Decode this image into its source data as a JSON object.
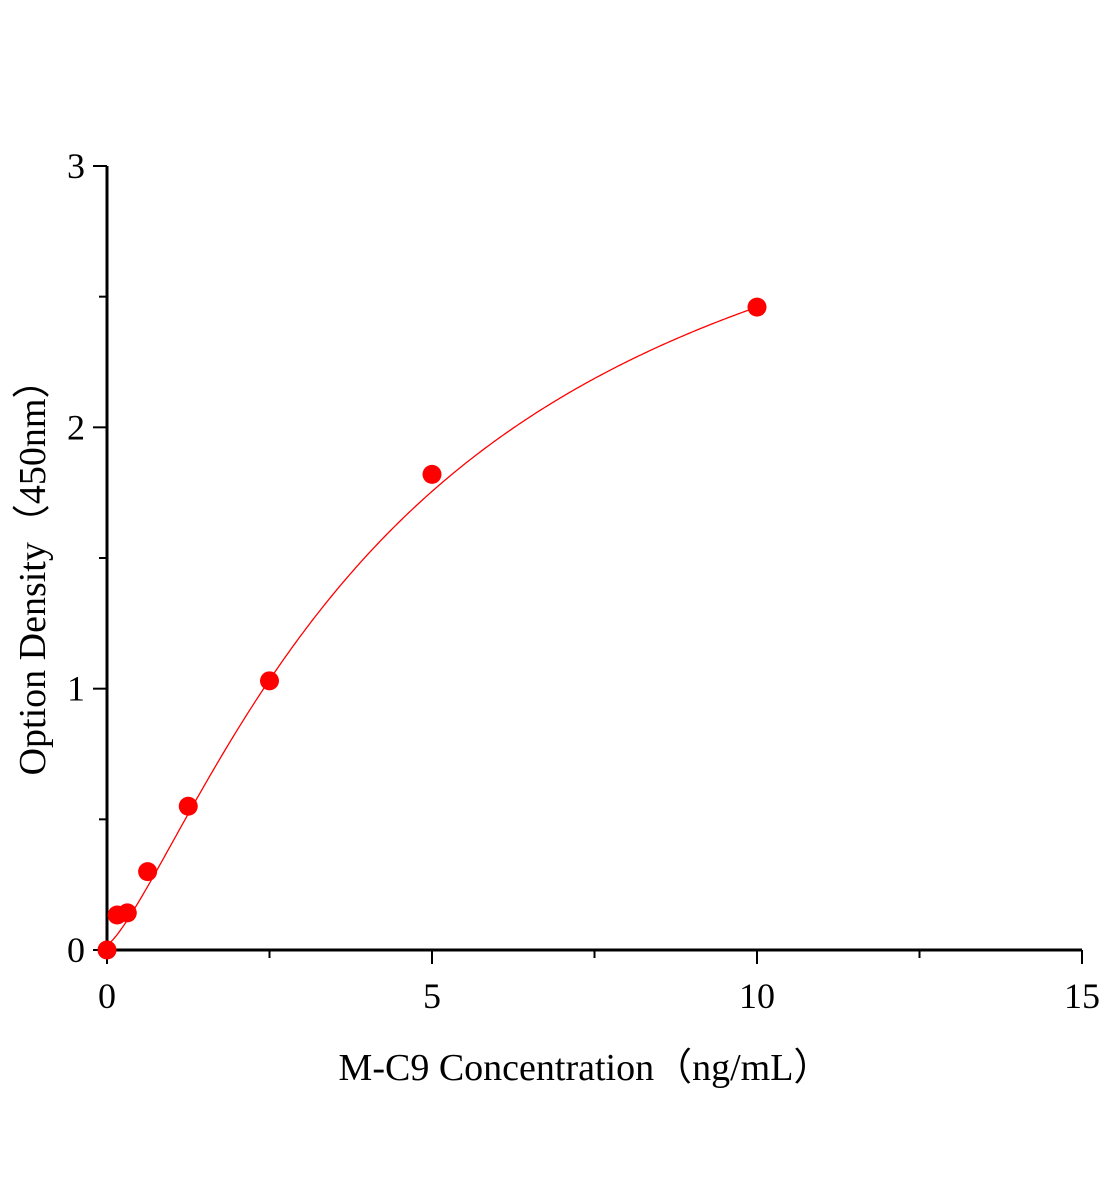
{
  "chart_data": {
    "type": "scatter",
    "title": "",
    "xlabel": "M-C9 Concentration（ng/mL）",
    "ylabel": "Option Density（450nm）",
    "xlim": [
      0,
      15
    ],
    "ylim": [
      0,
      3
    ],
    "x_ticks": [
      "0",
      "5",
      "10",
      "15"
    ],
    "y_ticks": [
      "0",
      "1",
      "2",
      "3"
    ],
    "grid": false,
    "legend": "none",
    "colors": {
      "points": "#ff0000",
      "fit_line": "#ff0000",
      "axes": "#000000"
    },
    "series": [
      {
        "x": [
          0,
          0.156,
          0.3125,
          0.625,
          1.25,
          2.5,
          5,
          10
        ],
        "y": [
          0.0,
          0.134,
          0.142,
          0.3,
          0.55,
          1.03,
          1.82,
          2.46
        ],
        "fit": "smooth curve"
      }
    ]
  }
}
